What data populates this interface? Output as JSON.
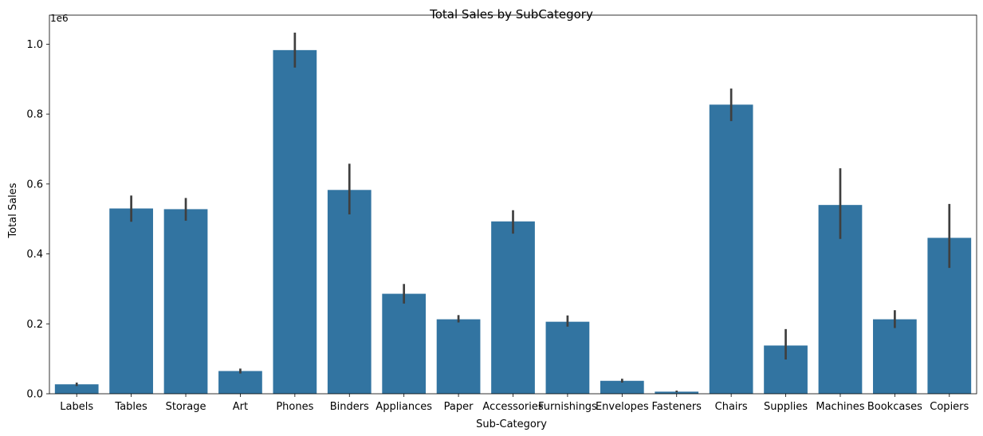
{
  "chart_data": {
    "type": "bar",
    "title": "Total Sales by SubCategory",
    "xlabel": "Sub-Category",
    "ylabel": "Total Sales",
    "offset_label": "1e6",
    "categories": [
      "Labels",
      "Tables",
      "Storage",
      "Art",
      "Phones",
      "Binders",
      "Appliances",
      "Paper",
      "Accessories",
      "Furnishings",
      "Envelopes",
      "Fasteners",
      "Chairs",
      "Supplies",
      "Machines",
      "Bookcases",
      "Copiers"
    ],
    "values": [
      0.027,
      0.53,
      0.528,
      0.065,
      0.983,
      0.583,
      0.286,
      0.213,
      0.493,
      0.206,
      0.037,
      0.006,
      0.827,
      0.138,
      0.54,
      0.213,
      0.446
    ],
    "error_low": [
      0.022,
      0.492,
      0.495,
      0.058,
      0.933,
      0.513,
      0.258,
      0.204,
      0.458,
      0.192,
      0.032,
      0.004,
      0.78,
      0.098,
      0.443,
      0.188,
      0.36
    ],
    "error_high": [
      0.032,
      0.567,
      0.56,
      0.072,
      1.033,
      0.658,
      0.314,
      0.225,
      0.525,
      0.224,
      0.043,
      0.009,
      0.873,
      0.185,
      0.645,
      0.239,
      0.543
    ],
    "yticks": [
      0.0,
      0.2,
      0.4,
      0.6,
      0.8,
      1.0
    ],
    "ytick_labels": [
      "0.0",
      "0.2",
      "0.4",
      "0.6",
      "0.8",
      "1.0"
    ],
    "ylim": [
      0,
      1.083
    ],
    "grid": false,
    "colors": {
      "bar": "#3274a1",
      "error": "#3f3f3f",
      "axis": "#000000"
    }
  }
}
